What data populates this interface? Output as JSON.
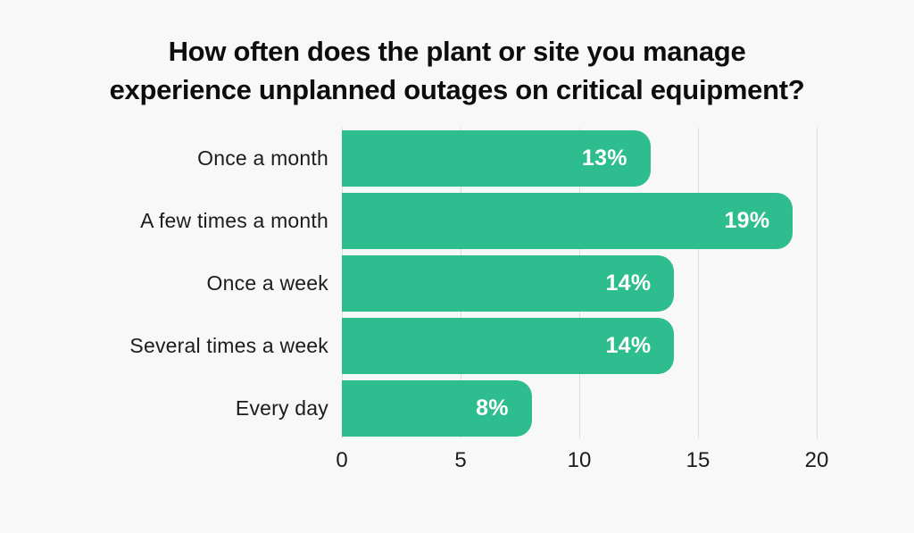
{
  "title": {
    "line1": "How often does the plant or site you manage",
    "line2": "experience unplanned outages on critical equipment?"
  },
  "chart_data": {
    "type": "bar",
    "orientation": "horizontal",
    "title": "How often does the plant or site you manage experience unplanned outages on critical equipment?",
    "categories": [
      "Once a month",
      "A few times a month",
      "Once a week",
      "Several times a week",
      "Every day"
    ],
    "values": [
      13,
      19,
      14,
      14,
      8
    ],
    "value_labels": [
      "13%",
      "19%",
      "14%",
      "14%",
      "8%"
    ],
    "x_ticks": [
      0,
      5,
      10,
      15,
      20
    ],
    "x_tick_labels": [
      "0",
      "5",
      "10",
      "15",
      "20"
    ],
    "xlim": [
      0,
      20
    ],
    "xlabel": "",
    "ylabel": "",
    "grid": true,
    "legend": "none",
    "colors": {
      "bar": "#2ebd8e",
      "bar_value_text": "#ffffff",
      "gridline": "#dcdcdf",
      "background": "#f8f8f9",
      "title_text": "#0d0d0d",
      "axis_text": "#1c1c1c"
    }
  }
}
